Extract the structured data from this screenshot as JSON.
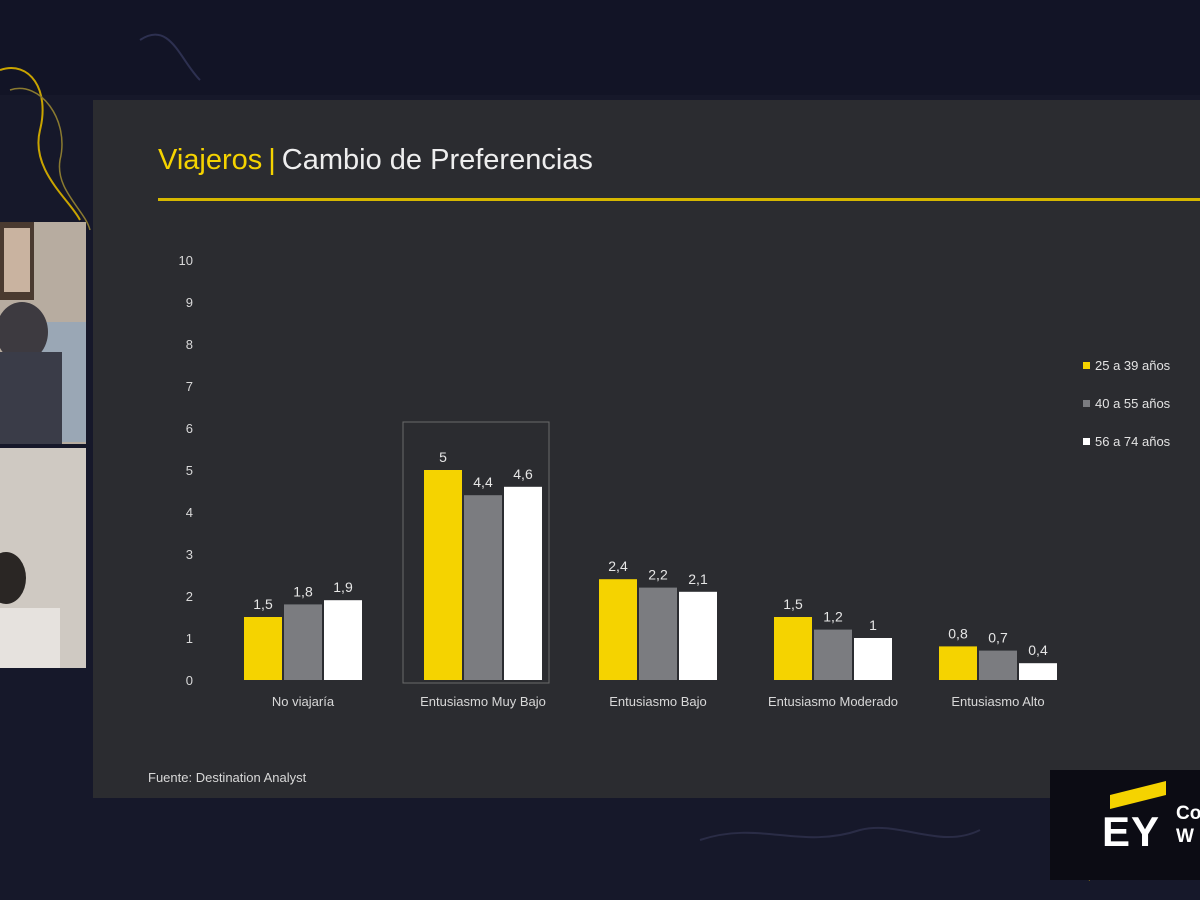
{
  "slide": {
    "title_accent": "Viajeros",
    "title_separator": "|",
    "title_main": "Cambio de Preferencias",
    "source": "Fuente: Destination Analyst"
  },
  "logo": {
    "text": "EY",
    "side_line1": "Co",
    "side_line2": "W"
  },
  "colors": {
    "accent": "#f5d300",
    "series_gray": "#7b7c80",
    "series_white": "#ffffff",
    "slide_bg": "#2b2c30"
  },
  "chart_data": {
    "type": "bar",
    "categories": [
      "No viajaría",
      "Entusiasmo Muy Bajo",
      "Entusiasmo Bajo",
      "Entusiasmo Moderado",
      "Entusiasmo Alto"
    ],
    "series": [
      {
        "name": "25 a 39 años",
        "color": "#f5d300",
        "values": [
          1.5,
          5,
          2.4,
          1.5,
          0.8
        ],
        "labels": [
          "1,5",
          "5",
          "2,4",
          "1,5",
          "0,8"
        ]
      },
      {
        "name": "40 a 55 años",
        "color": "#7b7c80",
        "values": [
          1.8,
          4.4,
          2.2,
          1.2,
          0.7
        ],
        "labels": [
          "1,8",
          "4,4",
          "2,2",
          "1,2",
          "0,7"
        ]
      },
      {
        "name": "56 a 74 años",
        "color": "#ffffff",
        "values": [
          1.9,
          4.6,
          2.1,
          1,
          0.4
        ],
        "labels": [
          "1,9",
          "4,6",
          "2,1",
          "1",
          "0,4"
        ]
      }
    ],
    "yticks": [
      "0",
      "1",
      "2",
      "3",
      "4",
      "5",
      "6",
      "7",
      "8",
      "9",
      "10"
    ],
    "ylim": [
      0,
      10
    ],
    "highlighted_category": "Entusiasmo Muy Bajo",
    "legend_position": "right",
    "grid": false,
    "title": "",
    "xlabel": "",
    "ylabel": ""
  }
}
